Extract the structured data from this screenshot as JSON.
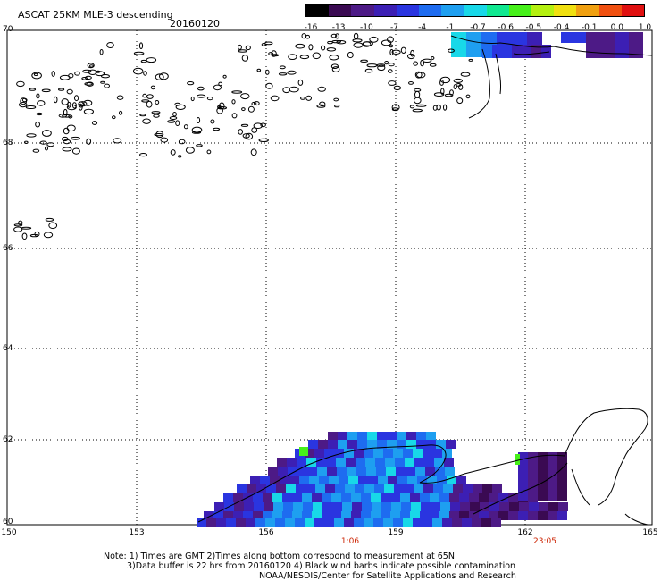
{
  "header": {
    "title": "ASCAT 25KM MLE-3 descending",
    "date": "20160120"
  },
  "colorbar": {
    "labels": [
      "-16",
      "-13",
      "-10",
      "-7",
      "-4",
      "-1",
      "-0.7",
      "-0.6",
      "-0.5",
      "-0.4",
      "-0.1",
      "0.0",
      "1.0"
    ],
    "colors": [
      "#000000",
      "#3a0a52",
      "#4d1a86",
      "#3c1fb4",
      "#2a35e0",
      "#1e6cf0",
      "#1e9ff0",
      "#18d8e8",
      "#10e890",
      "#46f01a",
      "#b4f010",
      "#f0e010",
      "#f0a010",
      "#f05010",
      "#e01010"
    ]
  },
  "map": {
    "lat_labels": [
      "70",
      "68",
      "66",
      "64",
      "62",
      "60"
    ],
    "lon_labels": [
      "150",
      "153",
      "156",
      "159",
      "162",
      "165"
    ],
    "time_labels": [
      "1:06",
      "23:05"
    ]
  },
  "notes": {
    "line1": "Note: 1) Times are GMT 2)Times along bottom correspond to measurement at 65N",
    "line2": "3)Data buffer is 22 hrs from 20160120 4) Black wind barbs indicate possible contamination",
    "line3": "NOAA/NESDIS/Center for Satellite Applications and Research"
  }
}
